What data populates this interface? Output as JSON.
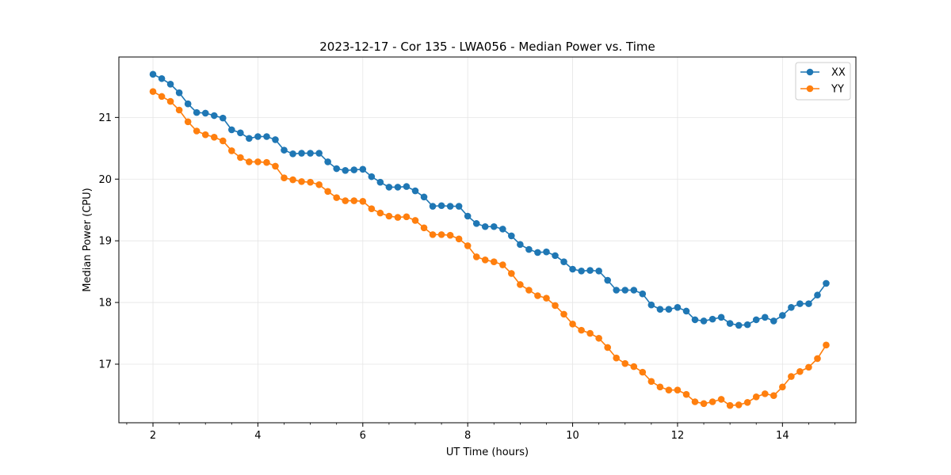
{
  "chart_data": {
    "type": "line",
    "title": "2023-12-17 - Cor 135 - LWA056 - Median Power vs. Time",
    "xlabel": "UT Time (hours)",
    "ylabel": "Median Power (CPU)",
    "xlim": [
      1.35,
      15.4
    ],
    "ylim": [
      16.05,
      21.98
    ],
    "xticks": [
      2,
      4,
      6,
      8,
      10,
      12,
      14
    ],
    "xtick_labels": [
      "2",
      "4",
      "6",
      "8",
      "10",
      "12",
      "14"
    ],
    "yticks": [
      17,
      18,
      19,
      20,
      21
    ],
    "ytick_labels": [
      "17",
      "18",
      "19",
      "20",
      "21"
    ],
    "grid": true,
    "legend_position": "top-right",
    "x": [
      2.0,
      2.167,
      2.333,
      2.5,
      2.667,
      2.833,
      3.0,
      3.167,
      3.333,
      3.5,
      3.667,
      3.833,
      4.0,
      4.167,
      4.333,
      4.5,
      4.667,
      4.833,
      5.0,
      5.167,
      5.333,
      5.5,
      5.667,
      5.833,
      6.0,
      6.167,
      6.333,
      6.5,
      6.667,
      6.833,
      7.0,
      7.167,
      7.333,
      7.5,
      7.667,
      7.833,
      8.0,
      8.167,
      8.333,
      8.5,
      8.667,
      8.833,
      9.0,
      9.167,
      9.333,
      9.5,
      9.667,
      9.833,
      10.0,
      10.167,
      10.333,
      10.5,
      10.667,
      10.833,
      11.0,
      11.167,
      11.333,
      11.5,
      11.667,
      11.833,
      12.0,
      12.167,
      12.333,
      12.5,
      12.667,
      12.833,
      13.0,
      13.167,
      13.333,
      13.5,
      13.667,
      13.833,
      14.0,
      14.167,
      14.333,
      14.5,
      14.667,
      14.833
    ],
    "series": [
      {
        "name": "XX",
        "color": "#1f77b4",
        "values": [
          21.7,
          21.63,
          21.54,
          21.4,
          21.22,
          21.08,
          21.07,
          21.03,
          20.99,
          20.8,
          20.75,
          20.66,
          20.69,
          20.69,
          20.64,
          20.47,
          20.41,
          20.42,
          20.42,
          20.42,
          20.28,
          20.17,
          20.14,
          20.15,
          20.16,
          20.04,
          19.95,
          19.87,
          19.87,
          19.88,
          19.81,
          19.71,
          19.56,
          19.57,
          19.56,
          19.56,
          19.4,
          19.28,
          19.23,
          19.23,
          19.19,
          19.08,
          18.94,
          18.86,
          18.81,
          18.82,
          18.76,
          18.66,
          18.54,
          18.51,
          18.52,
          18.51,
          18.36,
          18.2,
          18.2,
          18.2,
          18.14,
          17.96,
          17.89,
          17.89,
          17.92,
          17.86,
          17.72,
          17.7,
          17.73,
          17.76,
          17.66,
          17.63,
          17.64,
          17.72,
          17.76,
          17.7,
          17.79,
          17.92,
          17.98,
          17.98,
          18.12,
          18.31
        ]
      },
      {
        "name": "YY",
        "color": "#ff7f0e",
        "values": [
          21.42,
          21.34,
          21.26,
          21.12,
          20.93,
          20.78,
          20.72,
          20.68,
          20.62,
          20.46,
          20.35,
          20.28,
          20.28,
          20.27,
          20.21,
          20.02,
          19.99,
          19.96,
          19.95,
          19.91,
          19.8,
          19.7,
          19.65,
          19.65,
          19.64,
          19.52,
          19.45,
          19.4,
          19.38,
          19.39,
          19.33,
          19.21,
          19.1,
          19.1,
          19.09,
          19.03,
          18.92,
          18.74,
          18.69,
          18.66,
          18.61,
          18.47,
          18.29,
          18.2,
          18.11,
          18.07,
          17.95,
          17.81,
          17.65,
          17.55,
          17.5,
          17.42,
          17.27,
          17.1,
          17.01,
          16.96,
          16.87,
          16.72,
          16.63,
          16.58,
          16.58,
          16.51,
          16.39,
          16.36,
          16.39,
          16.43,
          16.33,
          16.34,
          16.38,
          16.47,
          16.52,
          16.49,
          16.63,
          16.8,
          16.88,
          16.95,
          17.09,
          17.31
        ]
      }
    ]
  }
}
